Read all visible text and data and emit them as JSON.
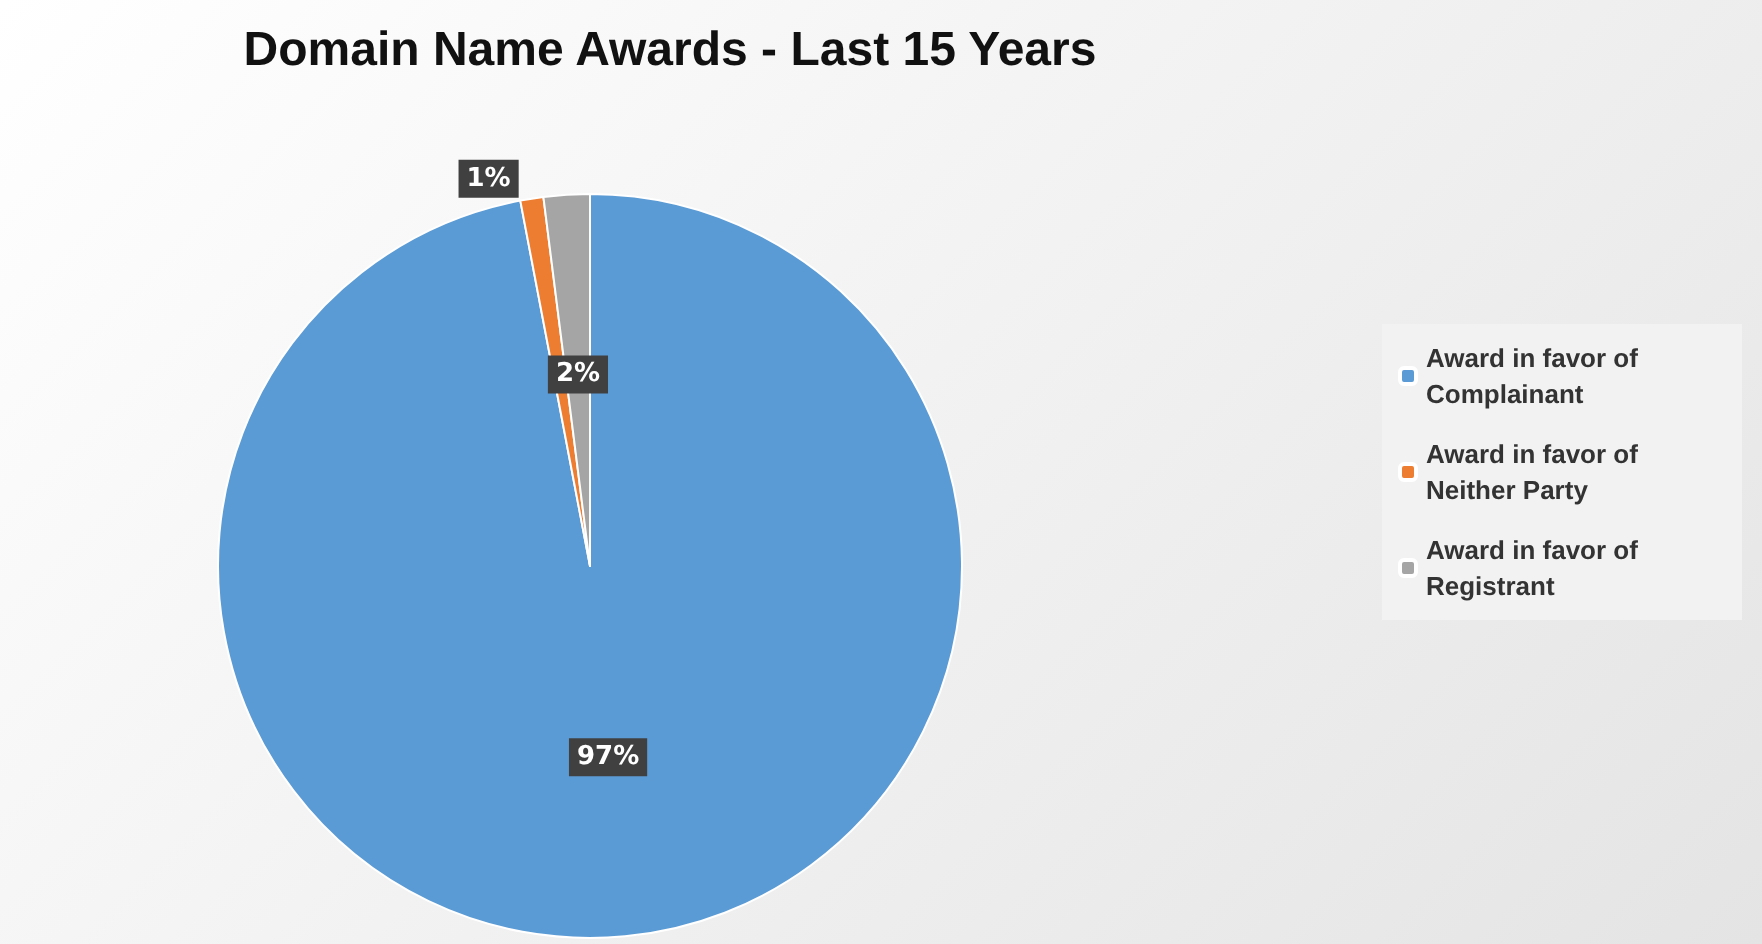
{
  "chart_data": {
    "type": "pie",
    "title": "Domain Name Awards - Last 15 Years",
    "categories": [
      "Award in favor of Complainant",
      "Award in favor of Neither Party",
      "Award in favor of Registrant"
    ],
    "values": [
      97,
      1,
      2
    ],
    "colors": [
      "#5b9bd5",
      "#ed7d31",
      "#a5a5a5"
    ],
    "value_labels": [
      "97%",
      "1%",
      "2%"
    ],
    "legend": "right"
  }
}
